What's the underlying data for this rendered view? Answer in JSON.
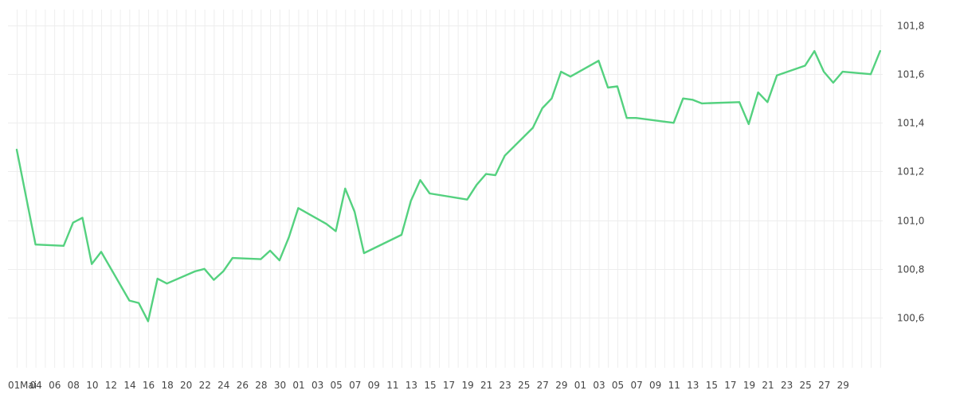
{
  "chart_data": {
    "type": "line",
    "title": "",
    "xlabel": "",
    "ylabel": "",
    "ylim": [
      100.4,
      101.85
    ],
    "grid": true,
    "y_ticks": [
      "100,6",
      "100,8",
      "101,0",
      "101,2",
      "101,4",
      "101,6",
      "101,8"
    ],
    "x_tick_labels": [
      "01",
      "Mai",
      "04",
      "06",
      "08",
      "10",
      "12",
      "14",
      "16",
      "18",
      "20",
      "22",
      "24",
      "26",
      "28",
      "30",
      "01",
      "03",
      "05",
      "07",
      "09",
      "11",
      "13",
      "15",
      "17",
      "19",
      "21",
      "23",
      "25",
      "27",
      "29",
      "01",
      "03",
      "05",
      "07",
      "09",
      "11",
      "13",
      "15",
      "17",
      "19",
      "21",
      "23",
      "25",
      "27",
      "29"
    ],
    "colors": {
      "series": "#54d17f",
      "grid": "#eeeeee",
      "text": "#444444"
    },
    "series": [
      {
        "values": [
          [
            0,
            101.29
          ],
          [
            2,
            100.9
          ],
          [
            5,
            100.895
          ],
          [
            6,
            100.99
          ],
          [
            7,
            101.01
          ],
          [
            8,
            100.82
          ],
          [
            9,
            100.87
          ],
          [
            12,
            100.67
          ],
          [
            13,
            100.66
          ],
          [
            14,
            100.585
          ],
          [
            15,
            100.76
          ],
          [
            16,
            100.74
          ],
          [
            19,
            100.79
          ],
          [
            20,
            100.8
          ],
          [
            21,
            100.755
          ],
          [
            22,
            100.79
          ],
          [
            23,
            100.845
          ],
          [
            26,
            100.84
          ],
          [
            27,
            100.875
          ],
          [
            28,
            100.835
          ],
          [
            29,
            100.93
          ],
          [
            30,
            101.05
          ],
          [
            33,
            100.985
          ],
          [
            34,
            100.955
          ],
          [
            35,
            101.13
          ],
          [
            36,
            101.035
          ],
          [
            37,
            100.865
          ],
          [
            41,
            100.94
          ],
          [
            42,
            101.08
          ],
          [
            43,
            101.165
          ],
          [
            44,
            101.11
          ],
          [
            48,
            101.085
          ],
          [
            49,
            101.145
          ],
          [
            50,
            101.19
          ],
          [
            51,
            101.185
          ],
          [
            52,
            101.265
          ],
          [
            55,
            101.38
          ],
          [
            56,
            101.46
          ],
          [
            57,
            101.5
          ],
          [
            58,
            101.61
          ],
          [
            59,
            101.59
          ],
          [
            62,
            101.655
          ],
          [
            63,
            101.545
          ],
          [
            64,
            101.55
          ],
          [
            65,
            101.42
          ],
          [
            66,
            101.42
          ],
          [
            69,
            101.405
          ],
          [
            70,
            101.4
          ],
          [
            71,
            101.5
          ],
          [
            72,
            101.495
          ],
          [
            73,
            101.48
          ],
          [
            77,
            101.485
          ],
          [
            78,
            101.395
          ],
          [
            79,
            101.525
          ],
          [
            80,
            101.485
          ],
          [
            81,
            101.595
          ],
          [
            84,
            101.635
          ],
          [
            85,
            101.695
          ],
          [
            86,
            101.61
          ],
          [
            87,
            101.565
          ],
          [
            88,
            101.61
          ],
          [
            91,
            101.6
          ],
          [
            92,
            101.695
          ]
        ]
      }
    ]
  }
}
